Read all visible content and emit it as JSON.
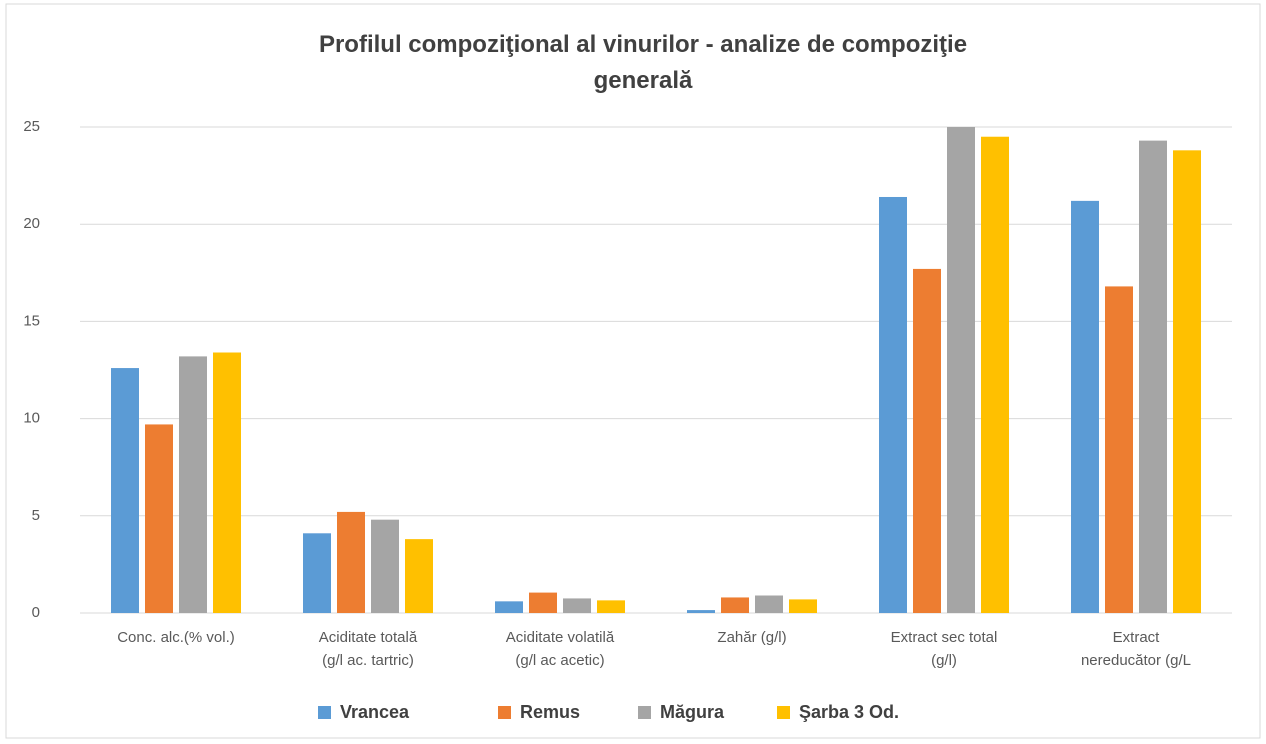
{
  "chart_data": {
    "type": "bar",
    "title": "Profilul compoziţional al vinurilor  - analize de compoziţie\ngenerală",
    "categories": [
      "Conc. alc.(% vol.)",
      "Aciditate totală\n(g/l ac. tartric)",
      "Aciditate volatilă\n(g/l ac acetic)",
      "Zahăr            (g/l)",
      "Extract sec total\n(g/l)",
      "Extract\nnereducător (g/L"
    ],
    "series": [
      {
        "name": "Vrancea",
        "color": "#5b9bd5",
        "values": [
          12.6,
          4.1,
          0.6,
          0.15,
          21.4,
          21.2
        ]
      },
      {
        "name": "Remus",
        "color": "#ed7d31",
        "values": [
          9.7,
          5.2,
          1.05,
          0.8,
          17.7,
          16.8
        ]
      },
      {
        "name": "Măgura",
        "color": "#a5a5a5",
        "values": [
          13.2,
          4.8,
          0.75,
          0.9,
          25,
          24.3
        ]
      },
      {
        "name": "Şarba 3 Od.",
        "color": "#ffc000",
        "values": [
          13.4,
          3.8,
          0.65,
          0.7,
          24.5,
          23.8
        ]
      }
    ],
    "ylim": [
      0,
      25
    ],
    "yticks": [
      0,
      5,
      10,
      15,
      20,
      25
    ],
    "grid": true,
    "legend": "bottom"
  }
}
